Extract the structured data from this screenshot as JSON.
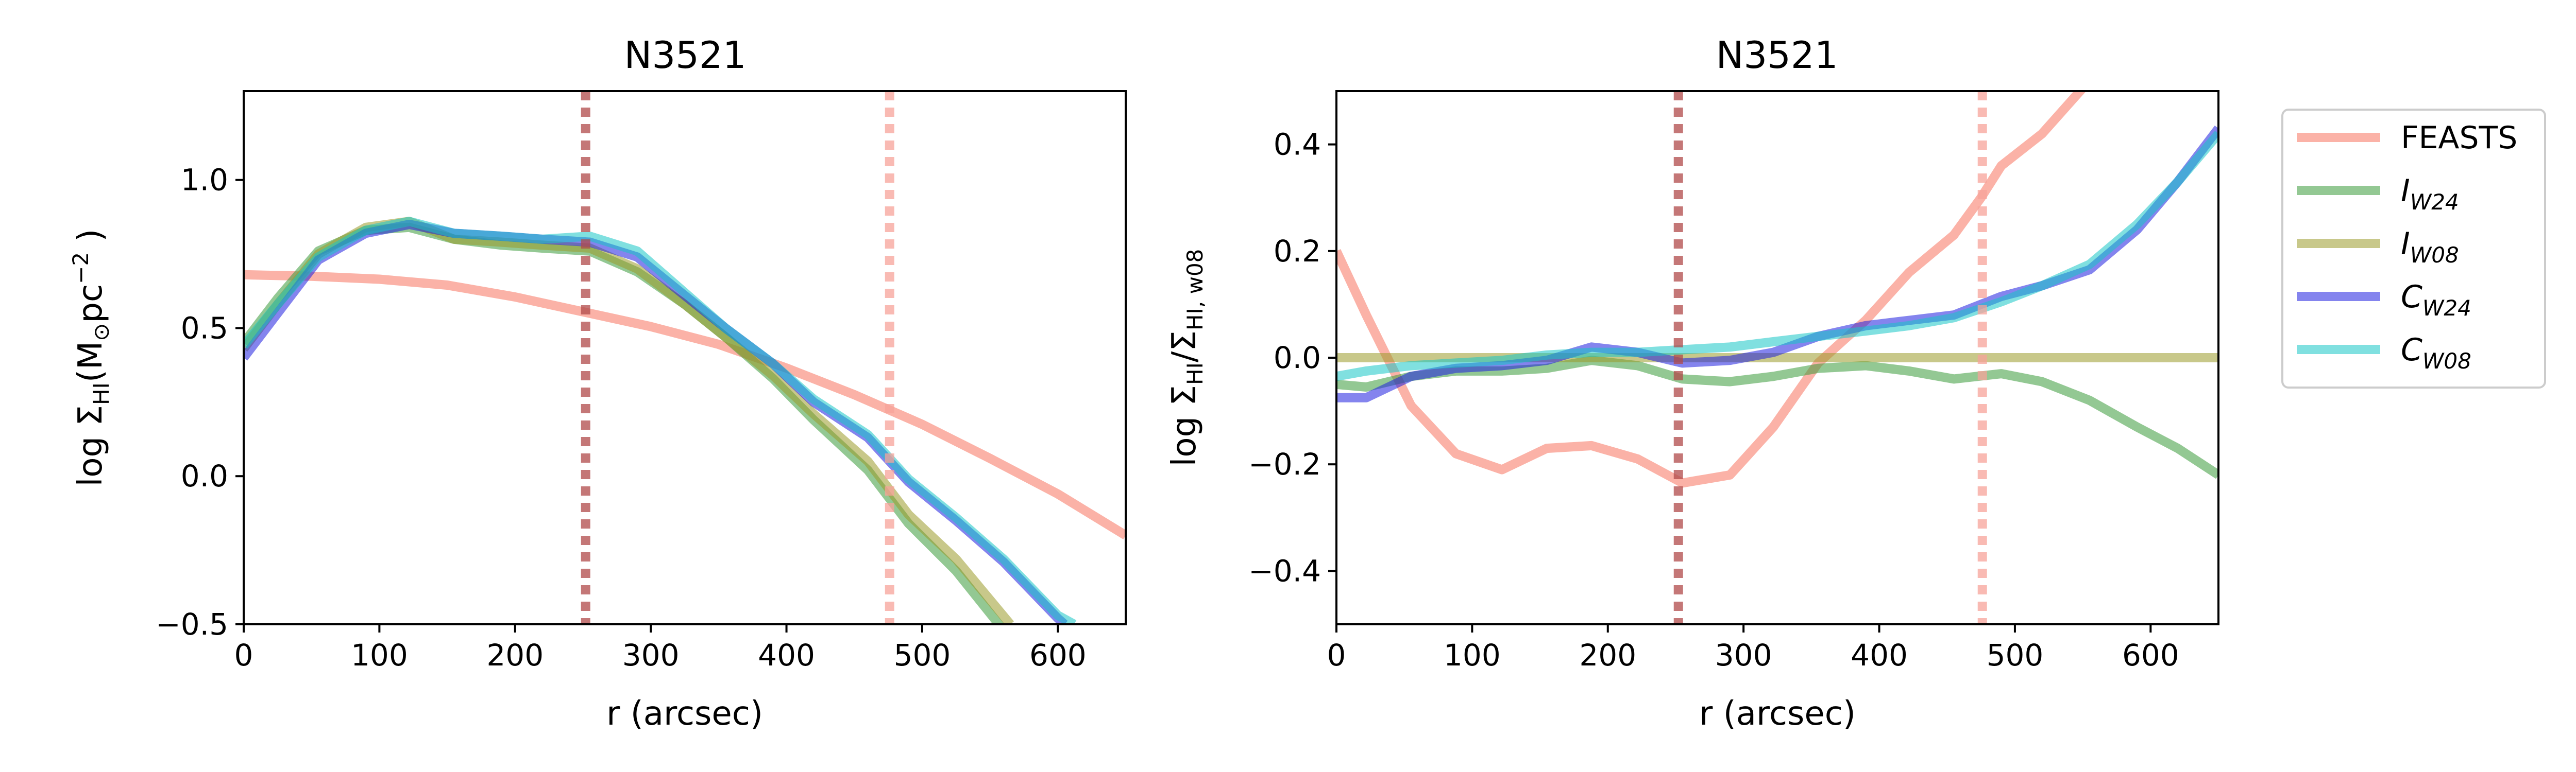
{
  "chart_data": [
    {
      "type": "line",
      "title": "N3521",
      "xlabel": "r (arcsec)",
      "ylabel": {
        "main": "log Σ",
        "sub": "HI",
        "rest": "(M",
        "sun": "⊙",
        "unit": "pc",
        "exp": "−2",
        "close": " )"
      },
      "xlim": [
        0,
        650
      ],
      "ylim": [
        -0.5,
        1.3
      ],
      "xticks": [
        0,
        100,
        200,
        300,
        400,
        500,
        600
      ],
      "xtick_labels": [
        "0",
        "100",
        "200",
        "300",
        "400",
        "500",
        "600"
      ],
      "yticks": [
        -0.5,
        0.0,
        0.5,
        1.0
      ],
      "ytick_labels": [
        "−0.5",
        "0.0",
        "0.5",
        "1.0"
      ],
      "grid": false,
      "vlines": [
        {
          "x": 252,
          "color": "#b04a4a"
        },
        {
          "x": 476,
          "color": "#f7a39a"
        }
      ],
      "series": [
        {
          "name": "FEASTS",
          "color": "#f7735f",
          "x": [
            0,
            50,
            100,
            150,
            200,
            250,
            300,
            350,
            400,
            450,
            500,
            550,
            600,
            650
          ],
          "y": [
            0.68,
            0.675,
            0.665,
            0.645,
            0.605,
            0.555,
            0.505,
            0.445,
            0.365,
            0.275,
            0.175,
            0.06,
            -0.06,
            -0.2
          ]
        },
        {
          "name": "I_W24",
          "color": "#3b9a3b",
          "x": [
            0,
            25,
            55,
            90,
            122,
            155,
            190,
            220,
            255,
            290,
            325,
            355,
            390,
            420,
            460,
            490,
            525,
            560
          ],
          "y": [
            0.45,
            0.6,
            0.76,
            0.83,
            0.84,
            0.8,
            0.78,
            0.77,
            0.76,
            0.69,
            0.58,
            0.47,
            0.33,
            0.19,
            0.02,
            -0.16,
            -0.32,
            -0.52
          ]
        },
        {
          "name": "I_W08",
          "color": "#9a9a2a",
          "x": [
            0,
            25,
            55,
            90,
            122,
            155,
            190,
            220,
            255,
            290,
            325,
            355,
            390,
            420,
            460,
            490,
            525,
            565
          ],
          "y": [
            0.43,
            0.58,
            0.75,
            0.84,
            0.86,
            0.8,
            0.79,
            0.78,
            0.77,
            0.7,
            0.58,
            0.47,
            0.34,
            0.21,
            0.05,
            -0.13,
            -0.28,
            -0.5
          ]
        },
        {
          "name": "C_W24",
          "color": "#1f1fe0",
          "x": [
            0,
            25,
            55,
            90,
            122,
            155,
            190,
            220,
            255,
            290,
            325,
            355,
            390,
            420,
            460,
            490,
            525,
            560,
            600,
            605
          ],
          "y": [
            0.4,
            0.55,
            0.73,
            0.82,
            0.85,
            0.82,
            0.81,
            0.8,
            0.79,
            0.74,
            0.61,
            0.5,
            0.38,
            0.25,
            0.13,
            -0.02,
            -0.15,
            -0.29,
            -0.48,
            -0.5
          ]
        },
        {
          "name": "C_W08",
          "color": "#17c6c6",
          "x": [
            0,
            25,
            55,
            90,
            122,
            155,
            190,
            220,
            255,
            290,
            325,
            355,
            390,
            420,
            460,
            490,
            525,
            560,
            600,
            612
          ],
          "y": [
            0.44,
            0.58,
            0.74,
            0.83,
            0.86,
            0.82,
            0.81,
            0.8,
            0.81,
            0.76,
            0.62,
            0.5,
            0.38,
            0.26,
            0.14,
            -0.01,
            -0.14,
            -0.28,
            -0.47,
            -0.5
          ]
        }
      ]
    },
    {
      "type": "line",
      "title": "N3521",
      "xlabel": "r (arcsec)",
      "ylabel": {
        "main": "log Σ",
        "sub1": "HI",
        "slash": "/Σ",
        "sub2": "HI, w08"
      },
      "xlim": [
        0,
        650
      ],
      "ylim": [
        -0.5,
        0.5
      ],
      "xticks": [
        0,
        100,
        200,
        300,
        400,
        500,
        600
      ],
      "xtick_labels": [
        "0",
        "100",
        "200",
        "300",
        "400",
        "500",
        "600"
      ],
      "yticks": [
        -0.4,
        -0.2,
        0.0,
        0.2,
        0.4
      ],
      "ytick_labels": [
        "−0.4",
        "−0.2",
        "0.0",
        "0.2",
        "0.4"
      ],
      "grid": false,
      "vlines": [
        {
          "x": 252,
          "color": "#b04a4a"
        },
        {
          "x": 476,
          "color": "#f7a39a"
        }
      ],
      "series": [
        {
          "name": "FEASTS",
          "color": "#f7735f",
          "x": [
            0,
            22,
            55,
            88,
            122,
            155,
            188,
            222,
            255,
            290,
            322,
            355,
            390,
            422,
            455,
            475,
            490,
            520,
            555,
            585
          ],
          "y": [
            0.2,
            0.08,
            -0.09,
            -0.18,
            -0.21,
            -0.17,
            -0.165,
            -0.19,
            -0.235,
            -0.22,
            -0.13,
            -0.01,
            0.07,
            0.16,
            0.23,
            0.3,
            0.36,
            0.42,
            0.52,
            0.6
          ]
        },
        {
          "name": "I_W24",
          "color": "#3b9a3b",
          "x": [
            0,
            22,
            55,
            88,
            122,
            155,
            188,
            222,
            255,
            290,
            322,
            355,
            390,
            422,
            455,
            490,
            520,
            555,
            590,
            620,
            650
          ],
          "y": [
            -0.05,
            -0.055,
            -0.035,
            -0.025,
            -0.025,
            -0.02,
            -0.005,
            -0.015,
            -0.04,
            -0.045,
            -0.035,
            -0.02,
            -0.015,
            -0.025,
            -0.04,
            -0.03,
            -0.045,
            -0.08,
            -0.13,
            -0.17,
            -0.22
          ]
        },
        {
          "name": "I_W08",
          "color": "#9a9a2a",
          "x": [
            0,
            650
          ],
          "y": [
            0.0,
            0.0
          ]
        },
        {
          "name": "C_W24",
          "color": "#1f1fe0",
          "x": [
            0,
            22,
            55,
            88,
            122,
            155,
            188,
            222,
            255,
            290,
            322,
            355,
            390,
            422,
            455,
            490,
            520,
            555,
            590,
            620,
            650
          ],
          "y": [
            -0.075,
            -0.075,
            -0.035,
            -0.02,
            -0.015,
            -0.005,
            0.02,
            0.01,
            -0.01,
            -0.005,
            0.01,
            0.04,
            0.06,
            0.07,
            0.08,
            0.115,
            0.135,
            0.165,
            0.24,
            0.33,
            0.43
          ]
        },
        {
          "name": "C_W08",
          "color": "#17c6c6",
          "x": [
            0,
            22,
            55,
            88,
            122,
            155,
            188,
            222,
            255,
            290,
            322,
            355,
            390,
            422,
            455,
            490,
            520,
            555,
            590,
            620,
            650
          ],
          "y": [
            -0.035,
            -0.025,
            -0.015,
            -0.01,
            -0.005,
            0.005,
            0.01,
            0.01,
            0.015,
            0.02,
            0.03,
            0.04,
            0.05,
            0.06,
            0.075,
            0.105,
            0.135,
            0.175,
            0.25,
            0.33,
            0.42
          ]
        }
      ]
    }
  ],
  "legend": {
    "placement": "outside right",
    "entries": [
      {
        "label": "FEASTS",
        "color": "#f7735f"
      },
      {
        "label": "I",
        "sub": "W24",
        "color": "#3b9a3b"
      },
      {
        "label": "I",
        "sub": "W08",
        "color": "#9a9a2a"
      },
      {
        "label": "C",
        "sub": "W24",
        "color": "#1f1fe0"
      },
      {
        "label": "C",
        "sub": "W08",
        "color": "#17c6c6"
      }
    ]
  }
}
